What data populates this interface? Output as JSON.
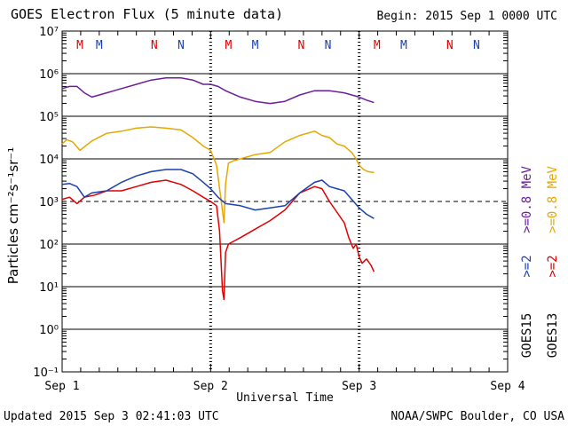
{
  "header": {
    "title": "GOES Electron Flux (5 minute data)",
    "begin": "Begin: 2015 Sep 1 0000 UTC"
  },
  "footer": {
    "updated": "Updated 2015 Sep  3 02:41:03 UTC",
    "credit": "NOAA/SWPC Boulder, CO USA"
  },
  "chart_data": {
    "type": "line",
    "title": "GOES Electron Flux (5 minute data)",
    "xlabel": "Universal Time",
    "ylabel": "Particles cm⁻²s⁻¹sr⁻¹",
    "x_unit": "days since 2015 Sep 1 0000 UTC",
    "xlim": [
      0,
      3
    ],
    "x_ticks": [
      {
        "x": 0,
        "label": "Sep 1"
      },
      {
        "x": 1,
        "label": "Sep 2"
      },
      {
        "x": 2,
        "label": "Sep 3"
      },
      {
        "x": 3,
        "label": "Sep 4"
      }
    ],
    "y_scale": "log",
    "ylim_exponent": [
      -1,
      7
    ],
    "y_ticks": [
      {
        "exp": 7,
        "label": "10⁷"
      },
      {
        "exp": 6,
        "label": "10⁶"
      },
      {
        "exp": 5,
        "label": "10⁵"
      },
      {
        "exp": 4,
        "label": "10⁴"
      },
      {
        "exp": 3,
        "label": "10³"
      },
      {
        "exp": 2,
        "label": "10²"
      },
      {
        "exp": 1,
        "label": "10¹"
      },
      {
        "exp": 0,
        "label": "10⁰"
      },
      {
        "exp": -1,
        "label": "10⁻¹"
      }
    ],
    "threshold_exponent": 3,
    "series": [
      {
        "name": "GOES13 >=0.8 MeV",
        "color": "#e6a800",
        "points": [
          [
            0,
            4.35
          ],
          [
            0.03,
            4.45
          ],
          [
            0.07,
            4.4
          ],
          [
            0.12,
            4.2
          ],
          [
            0.2,
            4.42
          ],
          [
            0.3,
            4.6
          ],
          [
            0.4,
            4.65
          ],
          [
            0.5,
            4.72
          ],
          [
            0.6,
            4.75
          ],
          [
            0.7,
            4.72
          ],
          [
            0.8,
            4.68
          ],
          [
            0.88,
            4.5
          ],
          [
            0.95,
            4.3
          ],
          [
            1.0,
            4.2
          ],
          [
            1.04,
            3.85
          ],
          [
            1.07,
            3.05
          ],
          [
            1.09,
            2.5
          ],
          [
            1.1,
            3.4
          ],
          [
            1.12,
            3.9
          ],
          [
            1.15,
            3.95
          ],
          [
            1.2,
            4.0
          ],
          [
            1.3,
            4.1
          ],
          [
            1.4,
            4.15
          ],
          [
            1.5,
            4.4
          ],
          [
            1.6,
            4.55
          ],
          [
            1.7,
            4.65
          ],
          [
            1.75,
            4.55
          ],
          [
            1.8,
            4.5
          ],
          [
            1.85,
            4.35
          ],
          [
            1.9,
            4.3
          ],
          [
            1.95,
            4.15
          ],
          [
            1.98,
            4.0
          ],
          [
            2.0,
            3.85
          ],
          [
            2.03,
            3.75
          ],
          [
            2.06,
            3.7
          ],
          [
            2.1,
            3.68
          ]
        ]
      },
      {
        "name": "GOES13 >=2 MeV",
        "color": "#e00000",
        "points": [
          [
            0,
            3.05
          ],
          [
            0.05,
            3.1
          ],
          [
            0.1,
            2.95
          ],
          [
            0.15,
            3.1
          ],
          [
            0.22,
            3.15
          ],
          [
            0.3,
            3.25
          ],
          [
            0.4,
            3.25
          ],
          [
            0.5,
            3.35
          ],
          [
            0.6,
            3.45
          ],
          [
            0.7,
            3.5
          ],
          [
            0.8,
            3.4
          ],
          [
            0.88,
            3.25
          ],
          [
            0.95,
            3.1
          ],
          [
            1.0,
            3.0
          ],
          [
            1.04,
            2.9
          ],
          [
            1.06,
            2.3
          ],
          [
            1.08,
            0.9
          ],
          [
            1.09,
            0.7
          ],
          [
            1.1,
            1.8
          ],
          [
            1.12,
            2.0
          ],
          [
            1.2,
            2.15
          ],
          [
            1.3,
            2.35
          ],
          [
            1.4,
            2.55
          ],
          [
            1.5,
            2.8
          ],
          [
            1.6,
            3.2
          ],
          [
            1.7,
            3.35
          ],
          [
            1.75,
            3.3
          ],
          [
            1.8,
            3.0
          ],
          [
            1.85,
            2.75
          ],
          [
            1.9,
            2.5
          ],
          [
            1.93,
            2.15
          ],
          [
            1.96,
            1.9
          ],
          [
            1.98,
            2.0
          ],
          [
            2.0,
            1.7
          ],
          [
            2.02,
            1.55
          ],
          [
            2.05,
            1.65
          ],
          [
            2.08,
            1.5
          ],
          [
            2.1,
            1.35
          ]
        ]
      },
      {
        "name": "GOES15 >=0.8 MeV",
        "color": "#6a1e9a",
        "points": [
          [
            0,
            5.65
          ],
          [
            0.05,
            5.7
          ],
          [
            0.1,
            5.7
          ],
          [
            0.15,
            5.55
          ],
          [
            0.2,
            5.45
          ],
          [
            0.3,
            5.55
          ],
          [
            0.4,
            5.65
          ],
          [
            0.5,
            5.75
          ],
          [
            0.6,
            5.85
          ],
          [
            0.7,
            5.9
          ],
          [
            0.8,
            5.9
          ],
          [
            0.88,
            5.85
          ],
          [
            0.95,
            5.75
          ],
          [
            1.0,
            5.75
          ],
          [
            1.05,
            5.7
          ],
          [
            1.1,
            5.6
          ],
          [
            1.2,
            5.45
          ],
          [
            1.3,
            5.35
          ],
          [
            1.4,
            5.3
          ],
          [
            1.5,
            5.35
          ],
          [
            1.6,
            5.5
          ],
          [
            1.7,
            5.6
          ],
          [
            1.8,
            5.6
          ],
          [
            1.9,
            5.55
          ],
          [
            1.95,
            5.5
          ],
          [
            2.0,
            5.45
          ],
          [
            2.05,
            5.38
          ],
          [
            2.1,
            5.32
          ]
        ]
      },
      {
        "name": "GOES15 >=2 MeV",
        "color": "#1a3fb0",
        "points": [
          [
            0,
            3.4
          ],
          [
            0.05,
            3.42
          ],
          [
            0.1,
            3.35
          ],
          [
            0.15,
            3.1
          ],
          [
            0.2,
            3.2
          ],
          [
            0.3,
            3.25
          ],
          [
            0.4,
            3.45
          ],
          [
            0.5,
            3.6
          ],
          [
            0.6,
            3.7
          ],
          [
            0.7,
            3.75
          ],
          [
            0.8,
            3.75
          ],
          [
            0.88,
            3.65
          ],
          [
            0.95,
            3.45
          ],
          [
            1.0,
            3.3
          ],
          [
            1.05,
            3.1
          ],
          [
            1.1,
            2.95
          ],
          [
            1.2,
            2.9
          ],
          [
            1.3,
            2.8
          ],
          [
            1.4,
            2.85
          ],
          [
            1.5,
            2.9
          ],
          [
            1.6,
            3.2
          ],
          [
            1.7,
            3.45
          ],
          [
            1.75,
            3.5
          ],
          [
            1.8,
            3.35
          ],
          [
            1.85,
            3.3
          ],
          [
            1.9,
            3.25
          ],
          [
            1.95,
            3.05
          ],
          [
            2.0,
            2.85
          ],
          [
            2.05,
            2.7
          ],
          [
            2.1,
            2.6
          ]
        ]
      }
    ],
    "markers": [
      {
        "x": 0.12,
        "label": "M",
        "color": "#e00000"
      },
      {
        "x": 0.25,
        "label": "M",
        "color": "#1a3fb0"
      },
      {
        "x": 0.62,
        "label": "N",
        "color": "#e00000"
      },
      {
        "x": 0.8,
        "label": "N",
        "color": "#1a3fb0"
      },
      {
        "x": 1.12,
        "label": "M",
        "color": "#e00000"
      },
      {
        "x": 1.3,
        "label": "M",
        "color": "#1a3fb0"
      },
      {
        "x": 1.61,
        "label": "N",
        "color": "#e00000"
      },
      {
        "x": 1.79,
        "label": "N",
        "color": "#1a3fb0"
      },
      {
        "x": 2.12,
        "label": "M",
        "color": "#e00000"
      },
      {
        "x": 2.3,
        "label": "M",
        "color": "#1a3fb0"
      },
      {
        "x": 2.61,
        "label": "N",
        "color": "#e00000"
      },
      {
        "x": 2.79,
        "label": "N",
        "color": "#1a3fb0"
      }
    ],
    "legend": [
      {
        "text": ">=0.8 MeV",
        "color": "#6a1e9a"
      },
      {
        "text": ">=0.8 MeV",
        "color": "#e6a800"
      },
      {
        "text": ">=2",
        "color": "#1a3fb0"
      },
      {
        "text": ">=2",
        "color": "#e00000"
      },
      {
        "text": "GOES15",
        "color": "#000000"
      },
      {
        "text": "GOES13",
        "color": "#000000"
      }
    ]
  }
}
